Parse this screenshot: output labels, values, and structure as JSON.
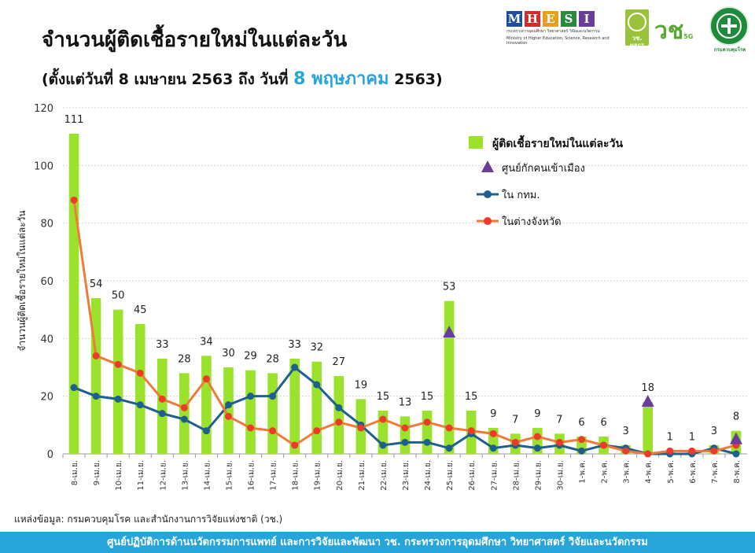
{
  "header": {
    "title": "จำนวนผู้ติดเชื้อรายใหม่ในแต่ละวัน",
    "subtitle_pre": "(ตั้งแต่วันที่ 8 เมษายน 2563 ถึง วันที่ ",
    "subtitle_highlight": "8 พฤษภาคม",
    "subtitle_post": " 2563)"
  },
  "logos": {
    "mhesi_letters": [
      "M",
      "H",
      "E",
      "S",
      "I"
    ],
    "mhesi_colors": [
      "#1f4e9c",
      "#d12d2d",
      "#e3a21a",
      "#2b8a3e",
      "#6a3d9a"
    ],
    "mhesi_caption_th": "กระทรวงการอุดมศึกษา วิทยาศาสตร์ วิจัยและนวัตกรรม",
    "mhesi_caption_en": "Ministry of Higher Education, Science, Research and Innovation",
    "nrct_label": "วช.",
    "nrct_sub": "NRCT",
    "v_label": "วช",
    "v_sub": "5G",
    "ddc_caption": "กรมควบคุมโรค"
  },
  "chart_data": {
    "type": "bar",
    "ylabel": "จำนวนผู้ติดเชื้อรายใหม่ในแต่ละวัน",
    "ylim": [
      0,
      120
    ],
    "yticks": [
      0,
      20,
      40,
      60,
      80,
      100,
      120
    ],
    "grid": true,
    "legend_position": "top-right",
    "categories": [
      "8-เม.ย.",
      "9-เม.ย.",
      "10-เม.ย.",
      "11-เม.ย.",
      "12-เม.ย.",
      "13-เม.ย.",
      "14-เม.ย.",
      "15-เม.ย.",
      "16-เม.ย.",
      "17-เม.ย.",
      "18-เม.ย.",
      "19-เม.ย.",
      "20-เม.ย.",
      "21-เม.ย.",
      "22-เม.ย.",
      "23-เม.ย.",
      "24-เม.ย.",
      "25-เม.ย.",
      "26-เม.ย.",
      "27-เม.ย.",
      "28-เม.ย.",
      "29-เม.ย.",
      "30-เม.ย.",
      "1-พ.ค.",
      "2-พ.ค.",
      "3-พ.ค.",
      "4-พ.ค.",
      "5-พ.ค.",
      "6-พ.ค.",
      "7-พ.ค.",
      "8-พ.ค."
    ],
    "series": [
      {
        "name": "ผู้ติดเชื้อรายใหม่ในแต่ละวัน",
        "kind": "bar",
        "color": "#9be22d",
        "values": [
          111,
          54,
          50,
          45,
          33,
          28,
          34,
          30,
          29,
          28,
          33,
          32,
          27,
          19,
          15,
          13,
          15,
          53,
          15,
          9,
          7,
          9,
          7,
          6,
          6,
          3,
          18,
          1,
          1,
          3,
          8
        ]
      },
      {
        "name": "ศูนย์กักคนเข้าเมือง",
        "kind": "marker",
        "color": "#6a3d9a",
        "points": [
          {
            "index": 17,
            "value": 42
          },
          {
            "index": 26,
            "value": 18
          },
          {
            "index": 30,
            "value": 5
          }
        ]
      },
      {
        "name": "ใน กทม.",
        "kind": "line",
        "color": "#1f5f8f",
        "values": [
          23,
          20,
          19,
          17,
          14,
          12,
          8,
          17,
          20,
          20,
          30,
          24,
          16,
          10,
          3,
          4,
          4,
          2,
          7,
          2,
          3,
          2,
          3,
          1,
          3,
          2,
          0,
          0,
          0,
          2,
          0
        ]
      },
      {
        "name": "ในต่างจังหวัด",
        "kind": "line",
        "color": "#f07a3a",
        "marker_color": "#ee3a2a",
        "values": [
          88,
          34,
          31,
          28,
          19,
          16,
          26,
          13,
          9,
          8,
          3,
          8,
          11,
          9,
          12,
          9,
          11,
          9,
          8,
          7,
          4,
          6,
          4,
          5,
          3,
          1,
          0,
          1,
          1,
          1,
          3
        ]
      }
    ]
  },
  "source_text": "แหล่งข้อมูล: กรมควบคุมโรค และสำนักงานการวิจัยแห่งชาติ (วช.)",
  "footer_text": "ศูนย์ปฏิบัติการด้านนวัตกรรมการแพทย์ และการวิจัยและพัฒนา  วช.  กระทรวงการอุดมศึกษา วิทยาศาสตร์ วิจัยและนวัตกรรม"
}
